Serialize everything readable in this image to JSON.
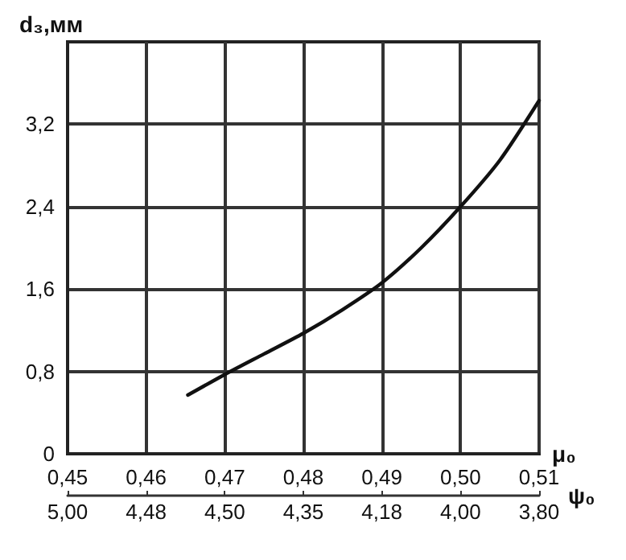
{
  "chart_data": {
    "type": "line",
    "ylabel": "d₃,мм",
    "xlabel": "μ₀",
    "x2label": "ψ₀",
    "x": [
      0.4653,
      0.47,
      0.475,
      0.48,
      0.485,
      0.49,
      0.495,
      0.5,
      0.505,
      0.51
    ],
    "values": [
      0.57,
      0.77,
      0.97,
      1.17,
      1.4,
      1.66,
      2.0,
      2.4,
      2.85,
      3.43
    ],
    "color": "#111111",
    "marker": "none",
    "line_style": "solid",
    "grid": true,
    "xlim": [
      0.45,
      0.51
    ],
    "xticks": [
      {
        "value": 0.45,
        "label": "0,45"
      },
      {
        "value": 0.46,
        "label": "0,46"
      },
      {
        "value": 0.47,
        "label": "0,47"
      },
      {
        "value": 0.48,
        "label": "0,48"
      },
      {
        "value": 0.49,
        "label": "0,49"
      },
      {
        "value": 0.5,
        "label": "0,50"
      },
      {
        "value": 0.51,
        "label": "0,51"
      }
    ],
    "annotations": [
      "5,00",
      "4,48",
      "4,50",
      "4,35",
      "4,18",
      "4,00",
      "3,80"
    ],
    "ylim": [
      0,
      4
    ],
    "yticks": [
      {
        "value": 0,
        "label": "0"
      },
      {
        "value": 0.8,
        "label": "0,8"
      },
      {
        "value": 1.6,
        "label": "1,6"
      },
      {
        "value": 2.4,
        "label": "2,4"
      },
      {
        "value": 3.2,
        "label": "3,2"
      }
    ]
  }
}
